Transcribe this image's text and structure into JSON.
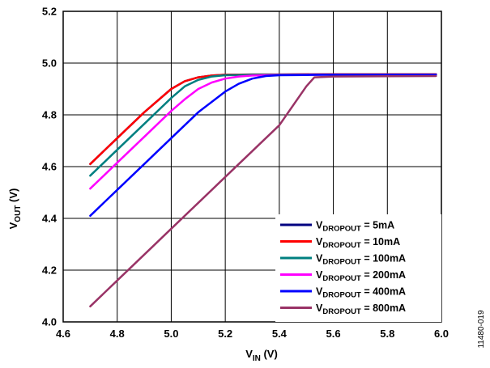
{
  "figure_id": "11480-019",
  "chart_data": {
    "type": "line",
    "xlabel": {
      "main": "V",
      "sub": "IN",
      "unit": " (V)"
    },
    "ylabel": {
      "main": "V",
      "sub": "OUT",
      "unit": " (V)"
    },
    "xlim": [
      4.6,
      6.0
    ],
    "ylim": [
      4.0,
      5.2
    ],
    "xticks": [
      4.6,
      4.8,
      5.0,
      5.2,
      5.4,
      5.6,
      5.8,
      6.0
    ],
    "yticks": [
      4.0,
      4.2,
      4.4,
      4.6,
      4.8,
      5.0,
      5.2
    ],
    "xtick_labels": [
      "4.6",
      "4.8",
      "5.0",
      "5.2",
      "5.4",
      "5.6",
      "5.8",
      "6.0"
    ],
    "ytick_labels": [
      "4.0",
      "4.2",
      "4.4",
      "4.6",
      "4.8",
      "5.0",
      "5.2"
    ],
    "grid": true,
    "legend_position": "bottom-right",
    "series": [
      {
        "name": "V_DROPOUT = 5mA",
        "label_main": "V",
        "label_sub": "DROPOUT",
        "label_rest": " = 5mA",
        "color": "#000080",
        "x": [
          4.7,
          4.8,
          4.9,
          5.0,
          5.05,
          5.1,
          5.15,
          5.2,
          5.3,
          5.4,
          5.6,
          5.8,
          5.98
        ],
        "y": [
          4.61,
          4.71,
          4.81,
          4.9,
          4.93,
          4.945,
          4.952,
          4.955,
          4.956,
          4.956,
          4.957,
          4.957,
          4.957
        ]
      },
      {
        "name": "V_DROPOUT = 10mA",
        "label_main": "V",
        "label_sub": "DROPOUT",
        "label_rest": " = 10mA",
        "color": "#ff0000",
        "x": [
          4.7,
          4.8,
          4.9,
          5.0,
          5.05,
          5.1,
          5.15,
          5.2,
          5.3,
          5.4,
          5.6,
          5.8,
          5.98
        ],
        "y": [
          4.61,
          4.71,
          4.81,
          4.9,
          4.93,
          4.945,
          4.952,
          4.955,
          4.956,
          4.956,
          4.957,
          4.957,
          4.957
        ]
      },
      {
        "name": "V_DROPOUT = 100mA",
        "label_main": "V",
        "label_sub": "DROPOUT",
        "label_rest": " = 100mA",
        "color": "#008080",
        "x": [
          4.7,
          4.8,
          4.9,
          5.0,
          5.05,
          5.1,
          5.15,
          5.2,
          5.3,
          5.4,
          5.6,
          5.8,
          5.98
        ],
        "y": [
          4.565,
          4.665,
          4.765,
          4.865,
          4.91,
          4.935,
          4.948,
          4.953,
          4.955,
          4.955,
          4.956,
          4.956,
          4.956
        ]
      },
      {
        "name": "V_DROPOUT = 200mA",
        "label_main": "V",
        "label_sub": "DROPOUT",
        "label_rest": " = 200mA",
        "color": "#ff00ff",
        "x": [
          4.7,
          4.8,
          4.9,
          5.0,
          5.05,
          5.1,
          5.15,
          5.2,
          5.25,
          5.3,
          5.4,
          5.6,
          5.8,
          5.98
        ],
        "y": [
          4.515,
          4.615,
          4.715,
          4.815,
          4.86,
          4.9,
          4.925,
          4.94,
          4.948,
          4.952,
          4.954,
          4.955,
          4.955,
          4.955
        ]
      },
      {
        "name": "V_DROPOUT = 400mA",
        "label_main": "V",
        "label_sub": "DROPOUT",
        "label_rest": " = 400mA",
        "color": "#0000ff",
        "x": [
          4.7,
          4.8,
          4.9,
          5.0,
          5.1,
          5.2,
          5.25,
          5.3,
          5.35,
          5.4,
          5.5,
          5.6,
          5.8,
          5.98
        ],
        "y": [
          4.41,
          4.51,
          4.61,
          4.71,
          4.81,
          4.89,
          4.92,
          4.94,
          4.95,
          4.953,
          4.954,
          4.955,
          4.955,
          4.955
        ]
      },
      {
        "name": "V_DROPOUT = 800mA",
        "label_main": "V",
        "label_sub": "DROPOUT",
        "label_rest": " = 800mA",
        "color": "#993366",
        "x": [
          4.7,
          4.8,
          4.9,
          5.0,
          5.1,
          5.2,
          5.3,
          5.4,
          5.5,
          5.53,
          5.6,
          5.8,
          5.98
        ],
        "y": [
          4.06,
          4.16,
          4.26,
          4.36,
          4.46,
          4.56,
          4.66,
          4.76,
          4.91,
          4.945,
          4.948,
          4.949,
          4.95
        ]
      }
    ]
  }
}
